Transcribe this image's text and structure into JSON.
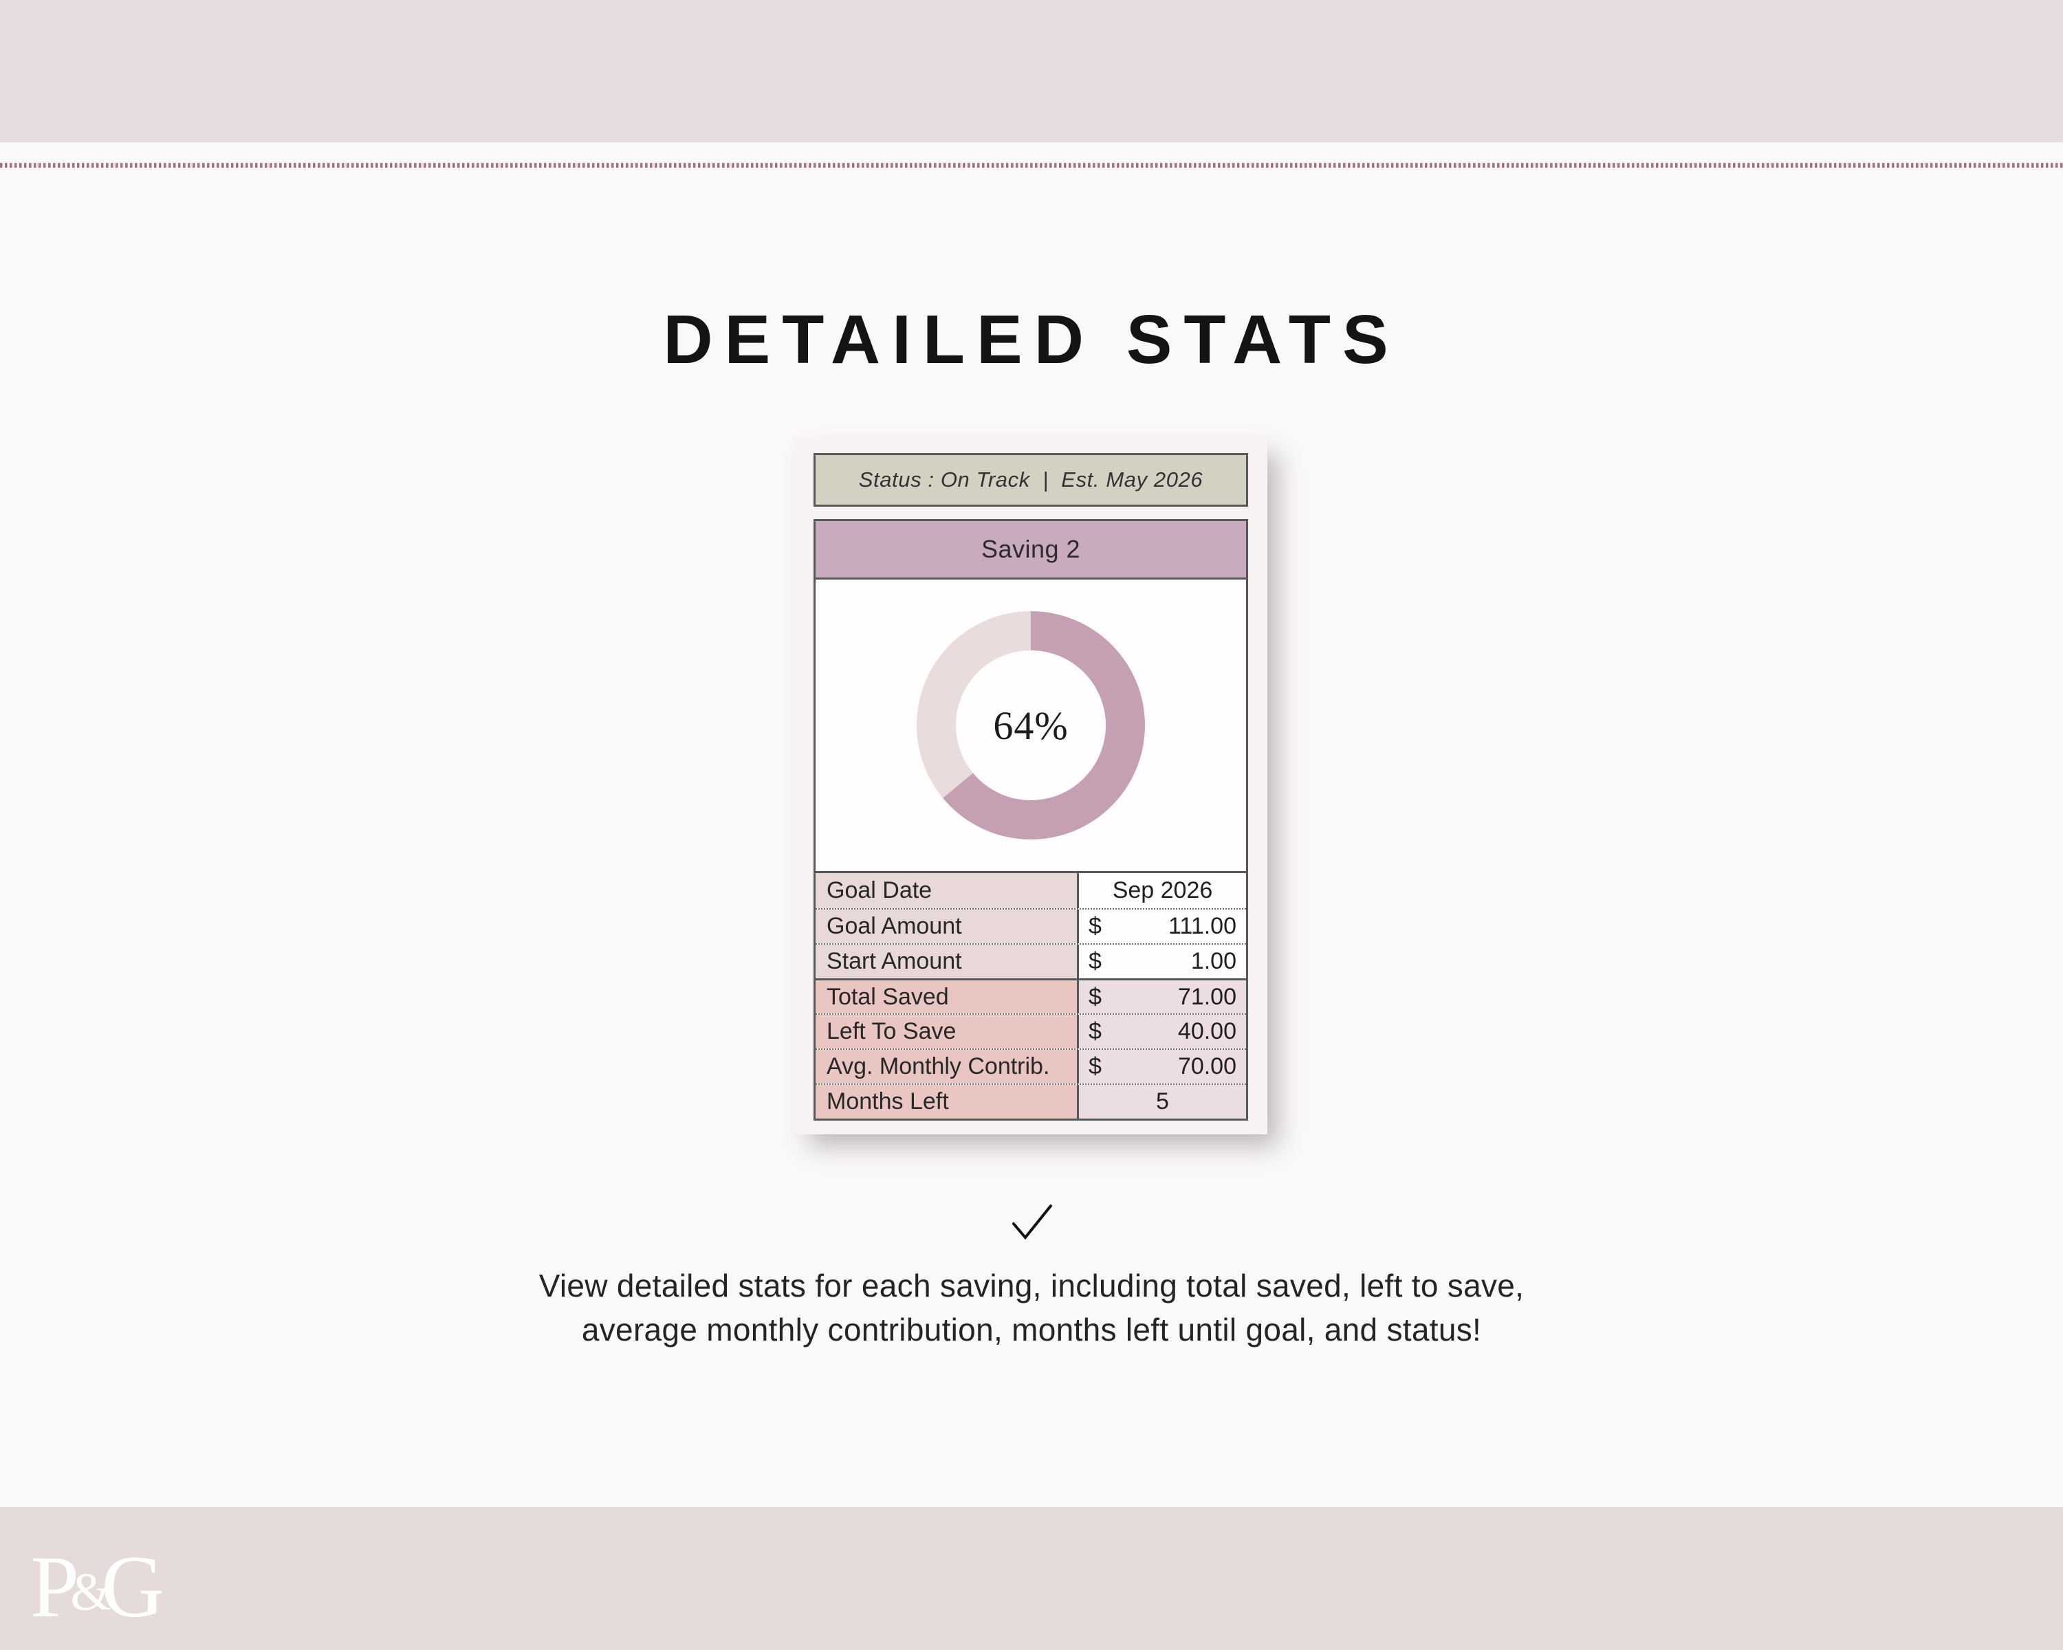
{
  "title": "DETAILED STATS",
  "card": {
    "status_text": "Status : On Track  |  Est. May 2026",
    "name": "Saving 2",
    "chart_data": {
      "type": "pie",
      "donut": true,
      "title": "Saving 2 progress donut",
      "center_label": "64%",
      "start_angle_deg": 0,
      "direction": "clockwise",
      "series": [
        {
          "name": "Saved",
          "value": 64,
          "color": "#c59fb2"
        },
        {
          "name": "Remaining",
          "value": 36,
          "color": "#e9dcdd"
        }
      ]
    },
    "table": {
      "rows": [
        {
          "label": "Goal Date",
          "currency": "",
          "value": "Sep 2026",
          "align": "center",
          "section": "top"
        },
        {
          "label": "Goal Amount",
          "currency": "$",
          "value": "111.00",
          "align": "right",
          "section": "top"
        },
        {
          "label": "Start Amount",
          "currency": "$",
          "value": "1.00",
          "align": "right",
          "section": "top"
        },
        {
          "label": "Total Saved",
          "currency": "$",
          "value": "71.00",
          "align": "right",
          "section": "bottom"
        },
        {
          "label": "Left To Save",
          "currency": "$",
          "value": "40.00",
          "align": "right",
          "section": "bottom"
        },
        {
          "label": "Avg. Monthly Contrib.",
          "currency": "$",
          "value": "70.00",
          "align": "right",
          "section": "bottom"
        },
        {
          "label": "Months Left",
          "currency": "",
          "value": "5",
          "align": "center",
          "section": "bottom"
        }
      ]
    }
  },
  "description": {
    "line1": "View detailed stats for each saving, including total saved, left to save,",
    "line2": "average monthly contribution, months left until goal, and status!"
  },
  "footer": {
    "logo_p": "P",
    "logo_amp": "&",
    "logo_g": "G"
  },
  "colors": {
    "top_bar": "#e8ddde",
    "bottom_bar": "#e5dbd9",
    "page_background": "#faf8f8",
    "dotted_divider": "#ab7088",
    "card_background": "#f8f3f2",
    "status_background": "#d4d1c2",
    "header_background": "#c9abbe",
    "donut_filled": "#c59fb2",
    "donut_unfilled": "#e9dcdd",
    "label_light": "#e8d8d8",
    "label_dark": "#e9c6c2",
    "value_pink": "#ecdee0",
    "border_dark": "#57585a"
  }
}
